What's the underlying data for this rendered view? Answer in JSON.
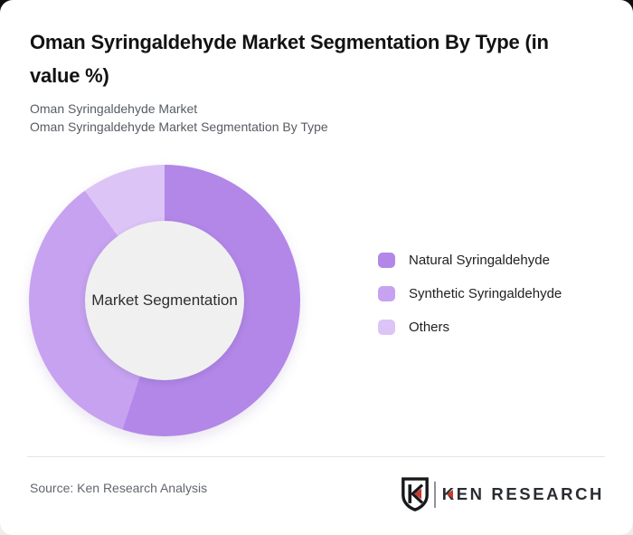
{
  "page": {
    "title": "Oman Syringaldehyde Market Segmentation By Type (in value %)",
    "subtitles": [
      "Oman Syringaldehyde Market",
      "Oman Syringaldehyde Market Segmentation By Type"
    ]
  },
  "chart_data": {
    "type": "pie",
    "variant": "donut",
    "title": "Oman Syringaldehyde Market Segmentation By Type (in value %)",
    "center_label": "Market Segmentation",
    "categories": [
      "Natural Syringaldehyde",
      "Synthetic Syringaldehyde",
      "Others"
    ],
    "values": [
      55,
      35,
      10
    ],
    "unit": "value %",
    "colors": [
      "#b287e8",
      "#c6a2f0",
      "#ddc4f6"
    ],
    "hole_color": "#f0f0f1",
    "start_angle_deg": 0,
    "direction": "clockwise",
    "legend_position": "right",
    "data_labels_shown": false
  },
  "footer": {
    "source": "Source: Ken Research Analysis",
    "logo_brand": "KEN RESEARCH",
    "logo_accent_color": "#c43b2f"
  }
}
